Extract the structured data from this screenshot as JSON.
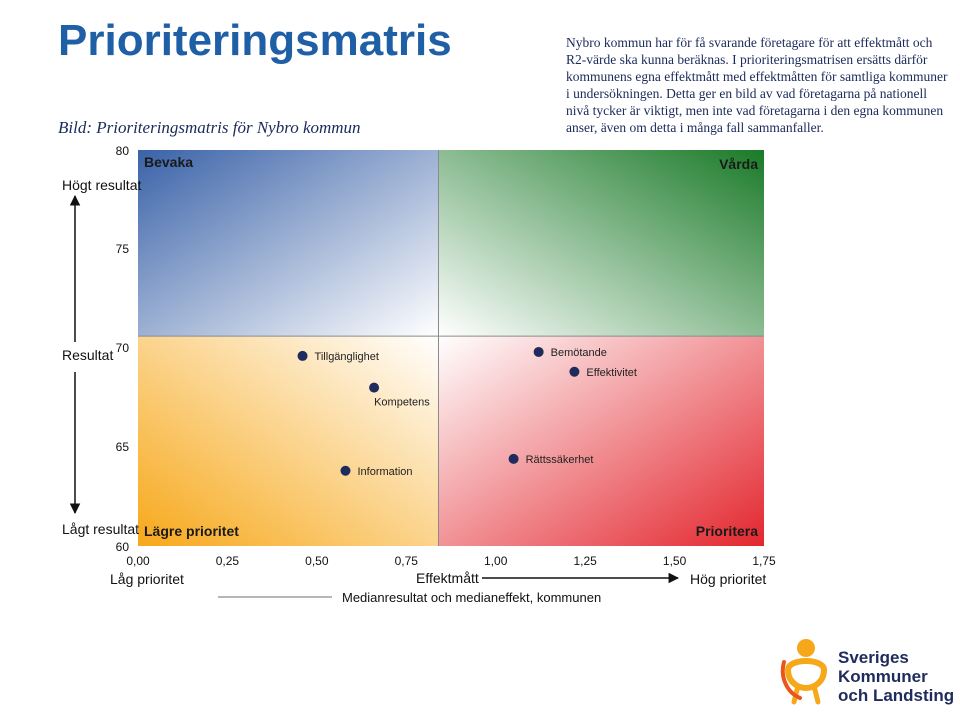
{
  "slide": {
    "title": "Prioriteringsmatris",
    "subtitle": "Bild: Prioriteringsmatris för Nybro kommun",
    "description": "Nybro kommun har för få svarande företagare för att effektmått och R2-värde ska kunna beräknas. I prioriteringsmatrisen ersätts därför kommunens egna effektmått med effektmåtten för samtliga kommuner i undersökningen. Detta ger en bild av vad företagarna på nationell nivå tycker är viktigt, men inte vad företagarna i den egna kommunen anser, även om detta i många fall sammanfaller."
  },
  "logo": {
    "line1": "Sveriges",
    "line2": "Kommuner",
    "line3": "och Landsting"
  },
  "chart_data": {
    "type": "scatter",
    "title": "",
    "xlabel": "Effektmått",
    "ylabel": "Resultat",
    "xlim": [
      0,
      1.75
    ],
    "ylim": [
      60,
      80
    ],
    "x_ticks": [
      "0,00",
      "0,25",
      "0,50",
      "0,75",
      "1,00",
      "1,25",
      "1,50",
      "1,75"
    ],
    "y_ticks": [
      "60",
      "65",
      "70",
      "75",
      "80"
    ],
    "median": {
      "x": 0.84,
      "y": 70.6
    },
    "quadrants": {
      "top_left": "Bevaka",
      "top_right": "Vårda",
      "bottom_left": "Lägre prioritet",
      "bottom_right": "Prioritera"
    },
    "axis_notes": {
      "y_high": "Högt resultat",
      "y_low": "Lågt resultat",
      "x_low": "Låg prioritet",
      "x_high": "Hög prioritet"
    },
    "legend": "Medianresultat och medianeffekt, kommunen",
    "colors": {
      "point": "#1f2b5c",
      "blue": "#3a62a8",
      "green": "#1a7a28",
      "yellow": "#f7a81a",
      "red": "#e3262e"
    },
    "points": [
      {
        "label": "Tillgänglighet",
        "x": 0.46,
        "y": 69.6
      },
      {
        "label": "Bemötande",
        "x": 1.12,
        "y": 69.8
      },
      {
        "label": "Effektivitet",
        "x": 1.22,
        "y": 68.8
      },
      {
        "label": "Kompetens",
        "x": 0.66,
        "y": 68.0
      },
      {
        "label": "Rättssäkerhet",
        "x": 1.05,
        "y": 64.4
      },
      {
        "label": "Information",
        "x": 0.58,
        "y": 63.8
      }
    ]
  }
}
